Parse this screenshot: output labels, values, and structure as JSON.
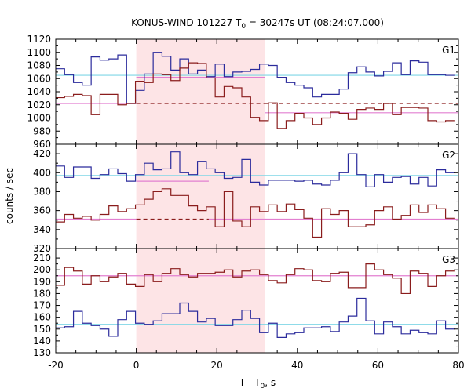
{
  "title": {
    "prefix": "KONUS-WIND 101227 T",
    "sub": "0",
    "suffix": " = 30247s UT (08:24:07.000)"
  },
  "colors": {
    "series_blue": "#2b2b9c",
    "series_red": "#8a1c1c",
    "background_line_cyan": "#7fd6e6",
    "background_line_pink": "#e27fd0",
    "interval_shade": "#fde4e6"
  },
  "chart_data": {
    "type": "line",
    "style": "step",
    "title": "KONUS-WIND 101227 T0 = 30247s UT (08:24:07.000)",
    "xlabel": "T - T0, s",
    "ylabel": "counts / sec",
    "xlim": [
      -20,
      80
    ],
    "x_ticks": [
      -20,
      0,
      20,
      40,
      60,
      80
    ],
    "grid": false,
    "shaded_interval": [
      0,
      32
    ],
    "bin_start": -20,
    "bin_width": 2.2,
    "panels": [
      {
        "label": "G1",
        "ylim": [
          960,
          1120
        ],
        "y_ticks": [
          960,
          980,
          1000,
          1020,
          1040,
          1060,
          1080,
          1100,
          1120
        ],
        "series": [
          {
            "color_key": "series_blue",
            "values": [
              1075,
              1066,
              1054,
              1050,
              1093,
              1088,
              1090,
              1096,
              1022,
              1042,
              1067,
              1100,
              1094,
              1073,
              1090,
              1067,
              1073,
              1063,
              1082,
              1063,
              1070,
              1071,
              1074,
              1082,
              1080,
              1062,
              1054,
              1050,
              1046,
              1032,
              1036,
              1036,
              1044,
              1069,
              1078,
              1070,
              1064,
              1071,
              1084,
              1066,
              1087,
              1085,
              1066,
              1066,
              1065
            ]
          },
          {
            "color_key": "series_red",
            "values": [
              1031,
              1033,
              1036,
              1034,
              1005,
              1036,
              1036,
              1020,
              1022,
              1056,
              1054,
              1067,
              1066,
              1057,
              1076,
              1084,
              1083,
              1061,
              1032,
              1048,
              1046,
              1032,
              1001,
              996,
              1023,
              984,
              996,
              1007,
              1000,
              990,
              1000,
              1009,
              1007,
              998,
              1013,
              1015,
              1013,
              1022,
              1005,
              1016,
              1016,
              1015,
              996,
              994,
              996
            ]
          }
        ],
        "background_lines": [
          {
            "color_key": "background_line_cyan",
            "dash": false,
            "segments": [
              [
                -20,
                80,
                1065
              ]
            ]
          },
          {
            "color_key": "background_line_red",
            "dash": true,
            "segments": [
              [
                0,
                32,
                1022
              ],
              [
                32,
                80,
                1022
              ]
            ]
          },
          {
            "color_key": "background_line_pink",
            "dash": false,
            "segments": [
              [
                -20,
                0,
                1022
              ],
              [
                0,
                32,
                1062
              ],
              [
                32,
                80,
                1008
              ]
            ]
          }
        ]
      },
      {
        "label": "G2",
        "ylim": [
          320,
          430
        ],
        "y_ticks": [
          320,
          340,
          360,
          380,
          400,
          420
        ],
        "series": [
          {
            "color_key": "series_blue",
            "values": [
              407,
              395,
              406,
              406,
              394,
              398,
              404,
              399,
              391,
              398,
              410,
              403,
              404,
              422,
              400,
              398,
              412,
              404,
              400,
              394,
              395,
              414,
              390,
              387,
              392,
              392,
              392,
              391,
              392,
              388,
              387,
              392,
              400,
              420,
              398,
              385,
              398,
              390,
              395,
              396,
              388,
              395,
              386,
              403,
              400
            ]
          },
          {
            "color_key": "series_red",
            "values": [
              348,
              356,
              352,
              354,
              350,
              356,
              365,
              359,
              362,
              366,
              372,
              380,
              383,
              376,
              376,
              365,
              360,
              364,
              343,
              380,
              349,
              343,
              364,
              359,
              366,
              359,
              367,
              361,
              352,
              332,
              362,
              356,
              360,
              343,
              343,
              345,
              360,
              364,
              351,
              355,
              366,
              358,
              366,
              362,
              352
            ]
          }
        ],
        "background_lines": [
          {
            "color_key": "background_line_cyan",
            "dash": false,
            "segments": [
              [
                -20,
                80,
                397
              ]
            ]
          },
          {
            "color_key": "background_line_red",
            "dash": true,
            "segments": [
              [
                0,
                18,
                351
              ]
            ]
          },
          {
            "color_key": "background_line_pink",
            "dash": false,
            "segments": [
              [
                -20,
                0,
                351
              ],
              [
                0,
                6,
                391
              ],
              [
                6,
                18,
                391
              ],
              [
                18,
                80,
                351
              ]
            ]
          }
        ]
      },
      {
        "label": "G3",
        "ylim": [
          130,
          218
        ],
        "y_ticks": [
          130,
          140,
          150,
          160,
          170,
          180,
          190,
          200,
          210
        ],
        "series": [
          {
            "color_key": "series_red",
            "values": [
              187,
              202,
              199,
              188,
              195,
              190,
              194,
              197,
              188,
              186,
              196,
              190,
              197,
              201,
              196,
              194,
              197,
              197,
              198,
              200,
              194,
              199,
              200,
              196,
              191,
              189,
              196,
              201,
              200,
              191,
              190,
              197,
              198,
              185,
              185,
              205,
              200,
              196,
              193,
              180,
              199,
              197,
              186,
              195,
              199
            ]
          },
          {
            "color_key": "series_blue",
            "values": [
              151,
              152,
              165,
              155,
              153,
              150,
              144,
              158,
              165,
              155,
              154,
              157,
              163,
              163,
              172,
              165,
              156,
              159,
              153,
              153,
              158,
              166,
              159,
              147,
              155,
              143,
              146,
              147,
              151,
              151,
              152,
              148,
              156,
              161,
              176,
              157,
              146,
              156,
              152,
              146,
              149,
              147,
              146,
              157,
              150
            ]
          }
        ],
        "background_lines": [
          {
            "color_key": "background_line_pink",
            "dash": false,
            "segments": [
              [
                -20,
                80,
                195
              ]
            ]
          },
          {
            "color_key": "background_line_cyan",
            "dash": false,
            "segments": [
              [
                -20,
                80,
                154
              ]
            ]
          }
        ]
      }
    ]
  }
}
